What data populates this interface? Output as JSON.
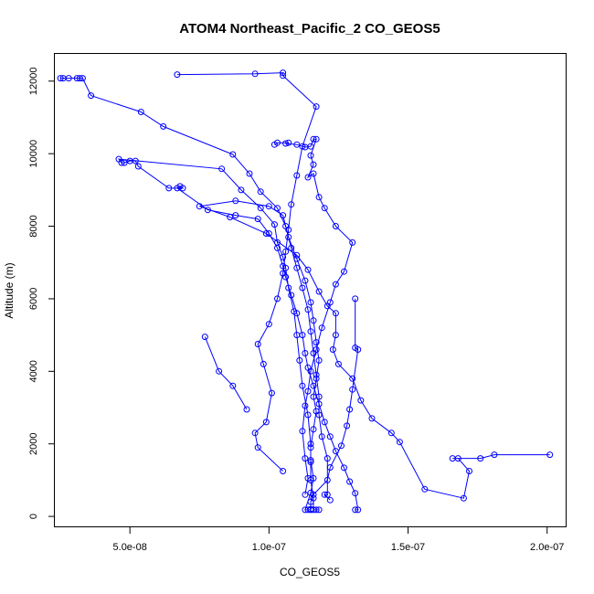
{
  "chart_data": {
    "type": "line",
    "title": "ATOM4 Northeast_Pacific_2 CO_GEOS5",
    "xlabel": "CO_GEOS5",
    "ylabel": "Altitude (m)",
    "xlim": [
      2.3e-08,
      2.07e-07
    ],
    "ylim": [
      -300,
      12750
    ],
    "xticks": [
      5e-08,
      1e-07,
      1.5e-07,
      2e-07
    ],
    "xtick_labels": [
      "5.0e-08",
      "1.0e-07",
      "1.5e-07",
      "2.0e-07"
    ],
    "yticks": [
      0,
      2000,
      4000,
      6000,
      8000,
      10000,
      12000
    ],
    "ytick_labels": [
      "0",
      "2000",
      "4000",
      "6000",
      "8000",
      "10000",
      "12000"
    ],
    "grid": false,
    "series": [
      {
        "color": "#0000ff",
        "marker": "circle-open",
        "points": [
          [
            1.31e-07,
            180
          ],
          [
            1.32e-07,
            180
          ],
          [
            1.31e-07,
            640
          ],
          [
            1.29e-07,
            960
          ],
          [
            1.27e-07,
            1340
          ],
          [
            1.24e-07,
            1800
          ],
          [
            1.22e-07,
            2200
          ],
          [
            1.2e-07,
            2600
          ],
          [
            1.18e-07,
            3100
          ],
          [
            1.16e-07,
            3600
          ],
          [
            1.14e-07,
            4100
          ],
          [
            1.13e-07,
            4500
          ],
          [
            1.12e-07,
            5000
          ],
          [
            1.1e-07,
            5600
          ],
          [
            1.08e-07,
            6100
          ],
          [
            1.06e-07,
            6600
          ],
          [
            1.05e-07,
            6900
          ],
          [
            1.03e-07,
            7400
          ],
          [
            1e-07,
            7800
          ],
          [
            9.6e-08,
            8200
          ],
          [
            8.8e-08,
            8300
          ],
          [
            7.8e-08,
            8450
          ],
          [
            6.7e-08,
            9050
          ],
          [
            6.8e-08,
            9100
          ],
          [
            6.9e-08,
            9050
          ],
          [
            6.4e-08,
            9050
          ],
          [
            5.3e-08,
            9650
          ],
          [
            5.2e-08,
            9800
          ],
          [
            5e-08,
            9800
          ],
          [
            4.8e-08,
            9750
          ],
          [
            4.7e-08,
            9750
          ],
          [
            4.6e-08,
            9850
          ],
          [
            8.3e-08,
            9580
          ],
          [
            9e-08,
            9000
          ],
          [
            9.7e-08,
            8500
          ],
          [
            1.02e-07,
            8050
          ],
          [
            1.03e-07,
            7550
          ],
          [
            1.05e-07,
            7150
          ],
          [
            1.06e-07,
            6850
          ],
          [
            1.07e-07,
            6300
          ],
          [
            1.09e-07,
            5650
          ],
          [
            1.1e-07,
            5000
          ],
          [
            1.11e-07,
            4300
          ],
          [
            1.12e-07,
            3600
          ],
          [
            1.14e-07,
            2800
          ],
          [
            1.15e-07,
            2000
          ],
          [
            1.15e-07,
            1500
          ],
          [
            1.15e-07,
            1000
          ],
          [
            1.16e-07,
            500
          ],
          [
            1.16e-07,
            180
          ],
          [
            1.17e-07,
            180
          ],
          [
            1.18e-07,
            180
          ]
        ]
      },
      {
        "color": "#0000ff",
        "marker": "circle-open",
        "points": [
          [
            1.15e-07,
            180
          ],
          [
            1.14e-07,
            180
          ],
          [
            1.13e-07,
            180
          ],
          [
            1.15e-07,
            650
          ],
          [
            1.16e-07,
            1050
          ],
          [
            1.15e-07,
            1550
          ],
          [
            1.15e-07,
            1900
          ],
          [
            1.16e-07,
            2400
          ],
          [
            1.17e-07,
            2900
          ],
          [
            1.16e-07,
            3300
          ],
          [
            1.17e-07,
            3800
          ],
          [
            1.18e-07,
            4300
          ],
          [
            1.17e-07,
            4800
          ],
          [
            1.16e-07,
            5400
          ],
          [
            1.15e-07,
            5900
          ],
          [
            1.13e-07,
            6500
          ],
          [
            1.1e-07,
            7100
          ],
          [
            1.07e-07,
            7700
          ],
          [
            1.05e-07,
            8300
          ],
          [
            1e-07,
            8550
          ],
          [
            8.8e-08,
            8700
          ],
          [
            7.5e-08,
            8550
          ],
          [
            8.6e-08,
            8250
          ],
          [
            9.9e-08,
            7800
          ],
          [
            1.1e-07,
            7200
          ],
          [
            1.14e-07,
            6800
          ],
          [
            1.18e-07,
            6200
          ],
          [
            1.21e-07,
            5800
          ],
          [
            1.24e-07,
            5600
          ],
          [
            1.24e-07,
            5000
          ],
          [
            1.23e-07,
            4600
          ],
          [
            1.25e-07,
            4200
          ],
          [
            1.3e-07,
            3800
          ],
          [
            1.33e-07,
            3200
          ],
          [
            1.37e-07,
            2700
          ],
          [
            1.44e-07,
            2300
          ],
          [
            1.47e-07,
            2050
          ],
          [
            1.56e-07,
            750
          ],
          [
            1.7e-07,
            500
          ],
          [
            1.72e-07,
            1250
          ],
          [
            1.68e-07,
            1600
          ],
          [
            1.66e-07,
            1600
          ],
          [
            1.76e-07,
            1600
          ],
          [
            1.81e-07,
            1700
          ],
          [
            2.01e-07,
            1700
          ]
        ]
      },
      {
        "color": "#0000ff",
        "marker": "circle-open",
        "points": [
          [
            2.5e-08,
            12080
          ],
          [
            2.6e-08,
            12080
          ],
          [
            2.8e-08,
            12080
          ],
          [
            3.1e-08,
            12080
          ],
          [
            3.2e-08,
            12080
          ],
          [
            3.3e-08,
            12080
          ],
          [
            3.6e-08,
            11600
          ],
          [
            5.4e-08,
            11150
          ],
          [
            6.2e-08,
            10750
          ],
          [
            8.7e-08,
            9980
          ],
          [
            9.3e-08,
            9450
          ],
          [
            9.7e-08,
            8950
          ],
          [
            1.03e-07,
            8500
          ],
          [
            1.06e-07,
            8000
          ],
          [
            1.08e-07,
            7400
          ],
          [
            1.1e-07,
            6850
          ],
          [
            1.12e-07,
            6300
          ],
          [
            1.14e-07,
            5700
          ],
          [
            1.15e-07,
            5100
          ],
          [
            1.16e-07,
            4500
          ],
          [
            1.17e-07,
            3900
          ],
          [
            1.18e-07,
            3300
          ],
          [
            1.18e-07,
            2800
          ],
          [
            1.19e-07,
            2200
          ],
          [
            1.21e-07,
            1600
          ],
          [
            1.21e-07,
            600
          ],
          [
            1.2e-07,
            600
          ],
          [
            1.22e-07,
            450
          ]
        ]
      },
      {
        "color": "#0000ff",
        "marker": "circle-open",
        "points": [
          [
            6.7e-08,
            12180
          ],
          [
            9.5e-08,
            12200
          ],
          [
            1.05e-07,
            12230
          ],
          [
            1.05e-07,
            12150
          ],
          [
            1.17e-07,
            11300
          ],
          [
            1.12e-07,
            10200
          ],
          [
            1.1e-07,
            9400
          ],
          [
            1.08e-07,
            8600
          ],
          [
            1.07e-07,
            7900
          ],
          [
            1.06e-07,
            7300
          ],
          [
            1.05e-07,
            6700
          ],
          [
            1.03e-07,
            6000
          ],
          [
            1e-07,
            5300
          ],
          [
            9.6e-08,
            4750
          ],
          [
            9.8e-08,
            4200
          ],
          [
            1.01e-07,
            3400
          ],
          [
            9.9e-08,
            2600
          ],
          [
            9.5e-08,
            2300
          ],
          [
            9.6e-08,
            1900
          ],
          [
            1.05e-07,
            1250
          ]
        ]
      },
      {
        "color": "#0000ff",
        "marker": "circle-open",
        "points": [
          [
            1.02e-07,
            10250
          ],
          [
            1.03e-07,
            10300
          ],
          [
            1.07e-07,
            10300
          ],
          [
            1.06e-07,
            10280
          ],
          [
            1.1e-07,
            10250
          ],
          [
            1.13e-07,
            10180
          ],
          [
            1.15e-07,
            10200
          ],
          [
            1.16e-07,
            10400
          ],
          [
            1.17e-07,
            10400
          ],
          [
            1.15e-07,
            9950
          ],
          [
            1.16e-07,
            9700
          ],
          [
            1.14e-07,
            9350
          ],
          [
            1.16e-07,
            9450
          ],
          [
            1.18e-07,
            8800
          ],
          [
            1.2e-07,
            8500
          ],
          [
            1.24e-07,
            8000
          ],
          [
            1.3e-07,
            7550
          ],
          [
            1.27e-07,
            6750
          ],
          [
            1.24e-07,
            6400
          ],
          [
            1.22e-07,
            5900
          ],
          [
            1.19e-07,
            5200
          ],
          [
            1.17e-07,
            4600
          ],
          [
            1.15e-07,
            4000
          ],
          [
            1.14e-07,
            3450
          ],
          [
            1.13e-07,
            3050
          ],
          [
            1.12e-07,
            2350
          ],
          [
            1.13e-07,
            1600
          ],
          [
            1.14e-07,
            1050
          ],
          [
            1.13e-07,
            600
          ]
        ]
      },
      {
        "color": "#0000ff",
        "marker": "circle-open",
        "points": [
          [
            1.31e-07,
            6000
          ],
          [
            1.31e-07,
            4650
          ],
          [
            1.32e-07,
            4600
          ],
          [
            1.3e-07,
            3500
          ],
          [
            1.29e-07,
            2950
          ],
          [
            1.28e-07,
            2500
          ],
          [
            1.26e-07,
            1950
          ],
          [
            1.22e-07,
            1350
          ],
          [
            1.21e-07,
            1000
          ],
          [
            1.16e-07,
            600
          ],
          [
            1.15e-07,
            400
          ],
          [
            1.15e-07,
            200
          ]
        ]
      },
      {
        "color": "#0000ff",
        "marker": "circle-open",
        "points": [
          [
            7.7e-08,
            4950
          ],
          [
            8.2e-08,
            4000
          ],
          [
            8.7e-08,
            3600
          ],
          [
            9.2e-08,
            2950
          ]
        ]
      }
    ]
  }
}
